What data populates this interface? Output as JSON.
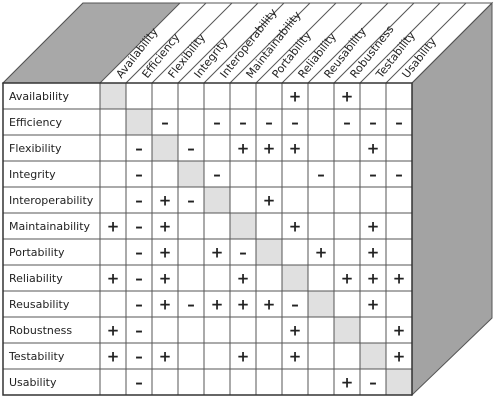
{
  "columns": [
    "Availability",
    "Efficiency",
    "Flexibility",
    "Integrity",
    "Interoperability",
    "Maintainability",
    "Portability",
    "Reliability",
    "Reusability",
    "Robustness",
    "Testability",
    "Usability"
  ],
  "rows": [
    {
      "label": "Availability",
      "cells": [
        null,
        null,
        null,
        null,
        null,
        null,
        null,
        "+",
        null,
        "+",
        null,
        null
      ]
    },
    {
      "label": "Efficiency",
      "cells": [
        null,
        null,
        "–",
        null,
        "–",
        "–",
        "–",
        "–",
        null,
        "–",
        "–",
        "–"
      ]
    },
    {
      "label": "Flexibility",
      "cells": [
        null,
        "–",
        null,
        "–",
        null,
        "+",
        "+",
        "+",
        null,
        null,
        "+",
        null
      ]
    },
    {
      "label": "Integrity",
      "cells": [
        null,
        "–",
        null,
        null,
        "–",
        null,
        null,
        null,
        "–",
        null,
        "–",
        "–"
      ]
    },
    {
      "label": "Interoperability",
      "cells": [
        null,
        "–",
        "+",
        "–",
        null,
        null,
        "+",
        null,
        null,
        null,
        null,
        null
      ]
    },
    {
      "label": "Maintainability",
      "cells": [
        "+",
        "–",
        "+",
        null,
        null,
        null,
        null,
        "+",
        null,
        null,
        "+",
        null
      ]
    },
    {
      "label": "Portability",
      "cells": [
        null,
        "–",
        "+",
        null,
        "+",
        "–",
        null,
        null,
        "+",
        null,
        "+",
        null
      ]
    },
    {
      "label": "Reliability",
      "cells": [
        "+",
        "–",
        "+",
        null,
        null,
        "+",
        null,
        null,
        null,
        "+",
        "+",
        "+"
      ]
    },
    {
      "label": "Reusability",
      "cells": [
        null,
        "–",
        "+",
        "–",
        "+",
        "+",
        "+",
        "–",
        null,
        null,
        "+",
        null
      ]
    },
    {
      "label": "Robustness",
      "cells": [
        "+",
        "–",
        null,
        null,
        null,
        null,
        null,
        "+",
        null,
        null,
        null,
        "+"
      ]
    },
    {
      "label": "Testability",
      "cells": [
        "+",
        "–",
        "+",
        null,
        null,
        "+",
        null,
        "+",
        null,
        null,
        null,
        "+"
      ]
    },
    {
      "label": "Usability",
      "cells": [
        null,
        "–",
        null,
        null,
        null,
        null,
        null,
        null,
        null,
        "+",
        "–",
        null
      ]
    }
  ]
}
